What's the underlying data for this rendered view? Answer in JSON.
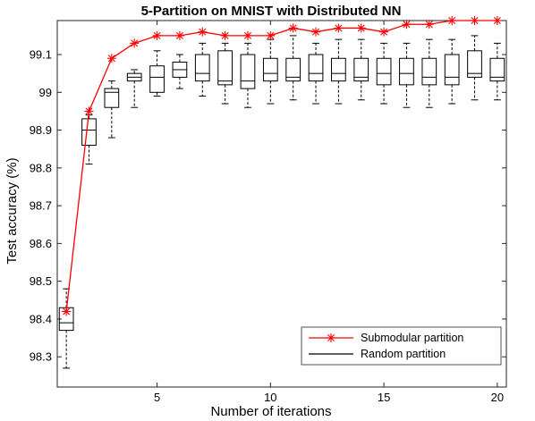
{
  "chart_data": {
    "type": "line",
    "title": "5-Partition on MNIST with Distributed NN",
    "xlabel": "Number of iterations",
    "ylabel": "Test accuracy (%)",
    "xlim": [
      0.6,
      20.4
    ],
    "ylim": [
      98.22,
      99.19
    ],
    "xticks": [
      5,
      10,
      15,
      20
    ],
    "yticks": [
      98.3,
      98.4,
      98.5,
      98.6,
      98.7,
      98.8,
      98.9,
      99,
      99.1
    ],
    "ytick_labels": [
      "98.3",
      "98.4",
      "98.5",
      "98.6",
      "98.7",
      "98.8",
      "98.9",
      "99",
      "99.1"
    ],
    "grid": false,
    "legend_position": "bottom-right",
    "legend": [
      "Submodular partition",
      "Random partition"
    ],
    "series": [
      {
        "name": "Submodular partition",
        "style": "line-with-star-markers",
        "color": "#ff0000",
        "x": [
          1,
          2,
          3,
          4,
          5,
          6,
          7,
          8,
          9,
          10,
          11,
          12,
          13,
          14,
          15,
          16,
          17,
          18,
          19,
          20
        ],
        "y": [
          98.42,
          98.95,
          99.09,
          99.13,
          99.15,
          99.15,
          99.16,
          99.15,
          99.15,
          99.15,
          99.17,
          99.16,
          99.17,
          99.17,
          99.16,
          99.18,
          99.18,
          99.19,
          99.19,
          99.19
        ]
      },
      {
        "name": "Random partition",
        "style": "boxplot",
        "color": "#000000",
        "boxes": [
          {
            "x": 1,
            "min": 98.27,
            "q1": 98.37,
            "median": 98.39,
            "q3": 98.43,
            "max": 98.48
          },
          {
            "x": 2,
            "min": 98.81,
            "q1": 98.86,
            "median": 98.9,
            "q3": 98.93,
            "max": 98.94
          },
          {
            "x": 3,
            "min": 98.88,
            "q1": 98.96,
            "median": 99.0,
            "q3": 99.01,
            "max": 99.03
          },
          {
            "x": 4,
            "min": 98.96,
            "q1": 99.03,
            "median": 99.04,
            "q3": 99.05,
            "max": 99.06
          },
          {
            "x": 5,
            "min": 98.99,
            "q1": 99.0,
            "median": 99.04,
            "q3": 99.07,
            "max": 99.11
          },
          {
            "x": 6,
            "min": 99.01,
            "q1": 99.04,
            "median": 99.06,
            "q3": 99.08,
            "max": 99.1
          },
          {
            "x": 7,
            "min": 98.99,
            "q1": 99.03,
            "median": 99.05,
            "q3": 99.1,
            "max": 99.13
          },
          {
            "x": 8,
            "min": 98.97,
            "q1": 99.02,
            "median": 99.03,
            "q3": 99.11,
            "max": 99.13
          },
          {
            "x": 9,
            "min": 98.96,
            "q1": 99.01,
            "median": 99.03,
            "q3": 99.1,
            "max": 99.13
          },
          {
            "x": 10,
            "min": 98.97,
            "q1": 99.03,
            "median": 99.05,
            "q3": 99.09,
            "max": 99.14
          },
          {
            "x": 11,
            "min": 98.98,
            "q1": 99.03,
            "median": 99.04,
            "q3": 99.09,
            "max": 99.15
          },
          {
            "x": 12,
            "min": 98.97,
            "q1": 99.03,
            "median": 99.05,
            "q3": 99.1,
            "max": 99.13
          },
          {
            "x": 13,
            "min": 98.97,
            "q1": 99.03,
            "median": 99.05,
            "q3": 99.09,
            "max": 99.14
          },
          {
            "x": 14,
            "min": 98.98,
            "q1": 99.03,
            "median": 99.04,
            "q3": 99.09,
            "max": 99.14
          },
          {
            "x": 15,
            "min": 98.97,
            "q1": 99.02,
            "median": 99.05,
            "q3": 99.09,
            "max": 99.13
          },
          {
            "x": 16,
            "min": 98.96,
            "q1": 99.02,
            "median": 99.05,
            "q3": 99.09,
            "max": 99.13
          },
          {
            "x": 17,
            "min": 98.96,
            "q1": 99.02,
            "median": 99.04,
            "q3": 99.09,
            "max": 99.14
          },
          {
            "x": 18,
            "min": 98.97,
            "q1": 99.02,
            "median": 99.04,
            "q3": 99.1,
            "max": 99.14
          },
          {
            "x": 19,
            "min": 98.98,
            "q1": 99.04,
            "median": 99.05,
            "q3": 99.11,
            "max": 99.15
          },
          {
            "x": 20,
            "min": 98.98,
            "q1": 99.03,
            "median": 99.04,
            "q3": 99.09,
            "max": 99.13
          }
        ]
      }
    ]
  }
}
